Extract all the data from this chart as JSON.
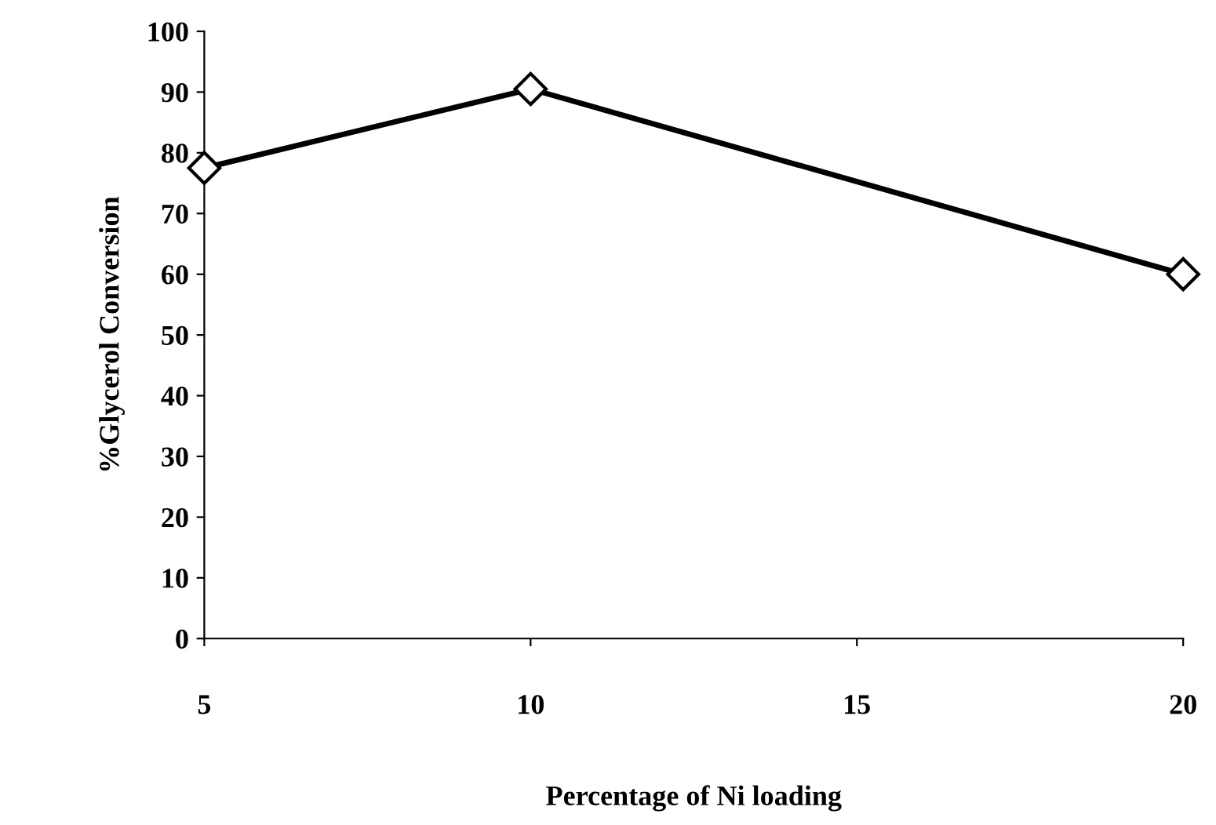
{
  "chart_data": {
    "type": "line",
    "xlabel": "Percentage of Ni loading",
    "ylabel": "%Glycerol Conversion",
    "x": [
      5,
      10,
      20
    ],
    "series": [
      {
        "color": "#000000",
        "values": [
          77.5,
          90.5,
          60
        ]
      }
    ],
    "xlim": [
      5,
      20
    ],
    "xticks": [
      5,
      10,
      15,
      20
    ],
    "ylim": [
      0,
      100
    ],
    "yticks": [
      0,
      10,
      20,
      30,
      40,
      50,
      60,
      70,
      80,
      90,
      100
    ],
    "marker": "diamond",
    "line_style": "solid",
    "grid": false,
    "legend": false
  }
}
